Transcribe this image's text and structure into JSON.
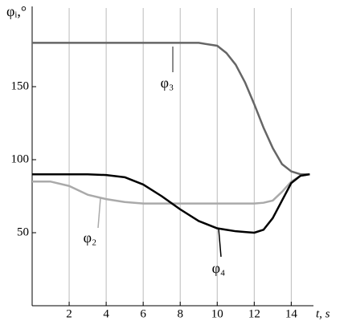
{
  "chart_data": {
    "type": "line",
    "ylabel": "φᵢ,°",
    "xlabel": "t, s",
    "x": [
      0,
      1,
      2,
      3,
      4,
      5,
      6,
      7,
      8,
      9,
      10,
      10.5,
      11,
      11.5,
      12,
      12.5,
      13,
      13.5,
      14,
      14.5,
      15
    ],
    "series": [
      {
        "name": "φ₃",
        "color": "#666666",
        "values": [
          180,
          180,
          180,
          180,
          180,
          180,
          180,
          180,
          180,
          180,
          178,
          173,
          165,
          153,
          138,
          122,
          108,
          97,
          92,
          90,
          90
        ]
      },
      {
        "name": "φ₂",
        "color": "#aaaaaa",
        "values": [
          85,
          85,
          82,
          76,
          73,
          71,
          70,
          70,
          70,
          70,
          70,
          70,
          70,
          70,
          70,
          70.5,
          72,
          78,
          85,
          89,
          90
        ]
      },
      {
        "name": "φ₄",
        "color": "#000000",
        "values": [
          90,
          90,
          90,
          90,
          89.5,
          88,
          83,
          75,
          66,
          58,
          53,
          52,
          51,
          50.5,
          50,
          52,
          60,
          72,
          84,
          89,
          90
        ]
      }
    ],
    "xlim": [
      0,
      15.2
    ],
    "ylim": [
      0,
      200
    ],
    "xticks": [
      2,
      4,
      6,
      8,
      10,
      12,
      14
    ],
    "yticks": [
      50,
      100,
      150
    ],
    "grid": "x"
  }
}
